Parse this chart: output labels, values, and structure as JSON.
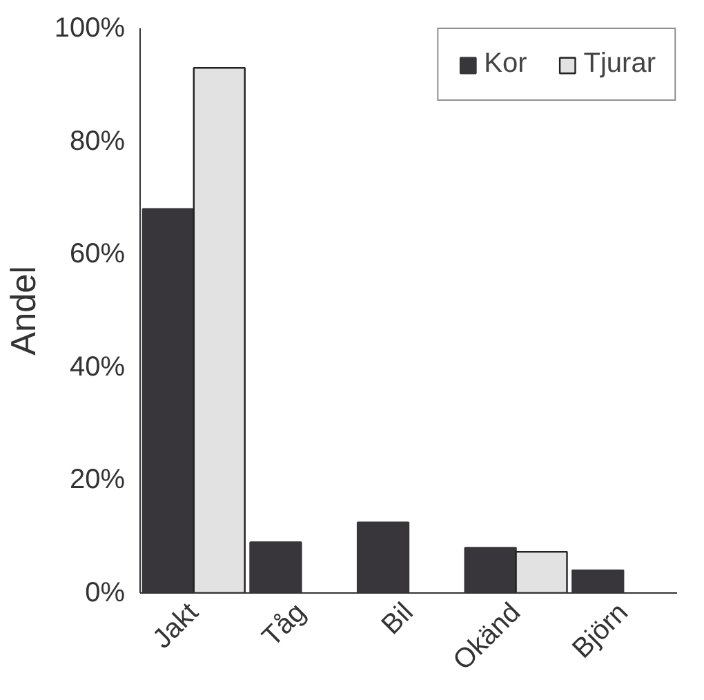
{
  "chart_data": {
    "type": "bar",
    "ylabel": "Andel",
    "categories": [
      "Jakt",
      "Tåg",
      "Bil",
      "Okänd",
      "Björn"
    ],
    "series": [
      {
        "name": "Kor",
        "color": "#38353b",
        "values": [
          68,
          9,
          12.5,
          8,
          4
        ]
      },
      {
        "name": "Tjurar",
        "color": "#e2e2e2",
        "values": [
          93,
          0,
          0,
          7.3,
          0
        ]
      }
    ],
    "ylim": [
      0,
      100
    ],
    "yticks": [
      {
        "value": 0,
        "label": "0%"
      },
      {
        "value": 20,
        "label": "20%"
      },
      {
        "value": 40,
        "label": "40%"
      },
      {
        "value": 60,
        "label": "60%"
      },
      {
        "value": 80,
        "label": "80%"
      },
      {
        "value": 100,
        "label": "100%"
      }
    ],
    "grid": false,
    "legend": "top right"
  }
}
